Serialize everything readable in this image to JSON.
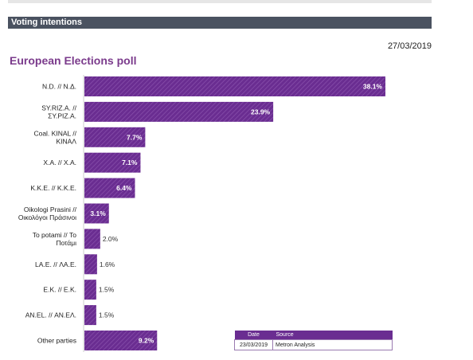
{
  "header": {
    "section_title": "Voting intentions",
    "date": "27/03/2019"
  },
  "poll_title": "European Elections poll",
  "colors": {
    "bar": "#6a2d91",
    "section_bar": "#4a5260",
    "title": "#7b3b8c"
  },
  "chart_data": {
    "type": "bar",
    "orientation": "horizontal",
    "categories": [
      [
        "N.D. // Ν.Δ."
      ],
      [
        "SY.RIZ.A. //",
        "ΣΥ.ΡΙΖ.Α."
      ],
      [
        "Coal. KINAL //",
        "ΚΙΝΑΛ"
      ],
      [
        "X.A. // Χ.Α."
      ],
      [
        "K.K.E. // Κ.Κ.Ε."
      ],
      [
        "Oikologi Prasini //",
        "Οικολόγοι Πράσινοι"
      ],
      [
        "To potami // Το",
        "Ποτάμι"
      ],
      [
        "LA.E. // ΛΑ.Ε."
      ],
      [
        "E.K. // Ε.Κ."
      ],
      [
        "AN.EL. // ΑΝ.ΕΛ."
      ],
      [
        "Other parties"
      ]
    ],
    "values": [
      38.1,
      23.9,
      7.7,
      7.1,
      6.4,
      3.1,
      2.0,
      1.6,
      1.5,
      1.5,
      9.2
    ],
    "labels": [
      "38.1%",
      "23.9%",
      "7.7%",
      "7.1%",
      "6.4%",
      "3.1%",
      "2.0%",
      "1.6%",
      "1.5%",
      "1.5%",
      "9.2%"
    ],
    "title": "European Elections poll",
    "xlabel": "",
    "ylabel": "",
    "xlim": [
      0,
      40
    ],
    "grid": false
  },
  "source_table": {
    "headers": [
      "Date",
      "Source"
    ],
    "rows": [
      [
        "23/03/2019",
        "Metron Analysis"
      ]
    ]
  }
}
